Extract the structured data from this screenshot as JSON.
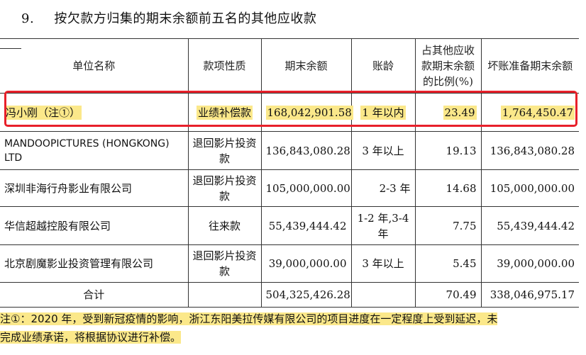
{
  "heading": {
    "number": "9.",
    "title": "按欠款方归集的期末余额前五名的其他应收款"
  },
  "table": {
    "headers": {
      "unit": "单位名称",
      "nature": "款项性质",
      "balance": "期末余额",
      "age": "账龄",
      "ratio": "占其他应收款期末余额的比例(%)",
      "provision": "坏账准备期末余额"
    },
    "rows": [
      {
        "unit": "冯小刚（注①）",
        "nature": "业绩补偿款",
        "balance": "168,042,901.58",
        "age": "1 年以内",
        "ratio": "23.49",
        "provision": "1,764,450.47"
      },
      {
        "unit": "MANDOOPICTURES (HONGKONG) LTD",
        "nature": "退回影片投资款",
        "balance": "136,843,080.28",
        "age": "3 年以上",
        "ratio": "19.13",
        "provision": "136,843,080.28"
      },
      {
        "unit": "深圳非海行舟影业有限公司",
        "nature": "退回影片投资款",
        "balance": "105,000,000.00",
        "age": "2-3 年",
        "ratio": "14.68",
        "provision": "105,000,000.00"
      },
      {
        "unit": "华信超越控股有限公司",
        "nature": "往来款",
        "balance": "55,439,444.42",
        "age": "1-2 年,3-4 年",
        "ratio": "7.75",
        "provision": "55,439,444.42"
      },
      {
        "unit": "北京剧魔影业投资管理有限公司",
        "nature": "退回影片投资款",
        "balance": "39,000,000.00",
        "age": "3 年以上",
        "ratio": "5.45",
        "provision": "39,000,000.00"
      }
    ],
    "total": {
      "label": "合计",
      "balance": "504,325,426.28",
      "ratio": "70.49",
      "provision": "338,046,975.17"
    }
  },
  "note": {
    "line1": "注①：2020 年，受到新冠疫情的影响，浙江东阳美拉传媒有限公司的项目进度在一定程度上受到延迟，未",
    "line2": "完成业绩承诺，将根据协议进行补偿。"
  },
  "colors": {
    "highlight": "#fbe88a",
    "frame": "#e8202a"
  }
}
